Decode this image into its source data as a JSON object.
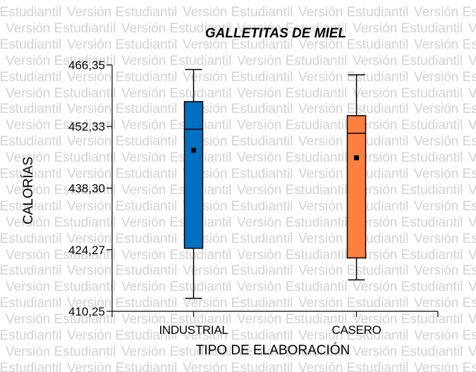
{
  "watermark": "Versión Estudiantil",
  "chart_data": {
    "type": "box",
    "title": "GALLETITAS DE MIEL",
    "xlabel": "TIPO DE ELABORACIÓN",
    "ylabel": "CALORÍAS",
    "ylim": [
      410.25,
      466.35
    ],
    "yticks": [
      "410,25",
      "424,27",
      "438,30",
      "452,33",
      "466,35"
    ],
    "ytick_values": [
      410.25,
      424.27,
      438.3,
      452.33,
      466.35
    ],
    "grid": false,
    "categories": [
      "INDUSTRIAL",
      "CASERO"
    ],
    "series": [
      {
        "category": "INDUSTRIAL",
        "color": "#0070c0",
        "min": 413.2,
        "q1": 424.6,
        "median": 451.7,
        "q3": 458.0,
        "max": 465.3,
        "mean": 446.9
      },
      {
        "category": "CASERO",
        "color": "#ff7f3f",
        "min": 417.4,
        "q1": 422.4,
        "median": 450.8,
        "q3": 454.8,
        "max": 464.1,
        "mean": 445.2
      }
    ]
  }
}
